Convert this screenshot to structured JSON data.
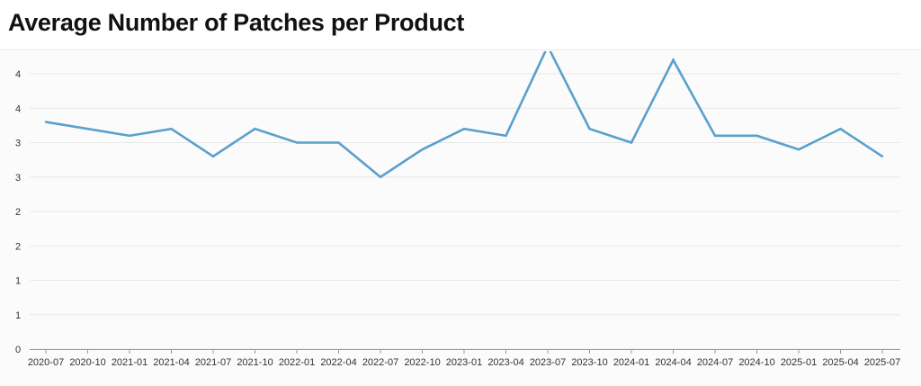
{
  "header": {
    "title": "Average Number of Patches per Product"
  },
  "colors": {
    "line": "#5aa0cd",
    "grid": "#e8e8e8",
    "axis": "#999999"
  },
  "chart_data": {
    "type": "line",
    "title": "Average Number of Patches per Product",
    "xlabel": "",
    "ylabel": "",
    "categories": [
      "2020-07",
      "2020-10",
      "2021-01",
      "2021-04",
      "2021-07",
      "2021-10",
      "2022-01",
      "2022-04",
      "2022-07",
      "2022-10",
      "2023-01",
      "2023-04",
      "2023-07",
      "2023-10",
      "2024-01",
      "2024-04",
      "2024-07",
      "2024-10",
      "2025-01",
      "2025-04",
      "2025-07"
    ],
    "series": [
      {
        "values": [
          3.3,
          3.2,
          3.1,
          3.2,
          2.8,
          3.2,
          3.0,
          3.0,
          2.5,
          2.9,
          3.2,
          3.1,
          4.4,
          3.2,
          3.0,
          4.2,
          3.1,
          3.1,
          2.9,
          3.2,
          2.8
        ]
      }
    ],
    "ylim": [
      0,
      4.0
    ],
    "y_ticks": [
      0,
      0.5,
      1,
      1.5,
      2,
      2.5,
      3,
      3.5,
      4
    ],
    "y_tick_labels": [
      "0",
      "1",
      "1",
      "2",
      "2",
      "3",
      "3",
      "4",
      "4"
    ],
    "grid": true,
    "legend": "none"
  }
}
